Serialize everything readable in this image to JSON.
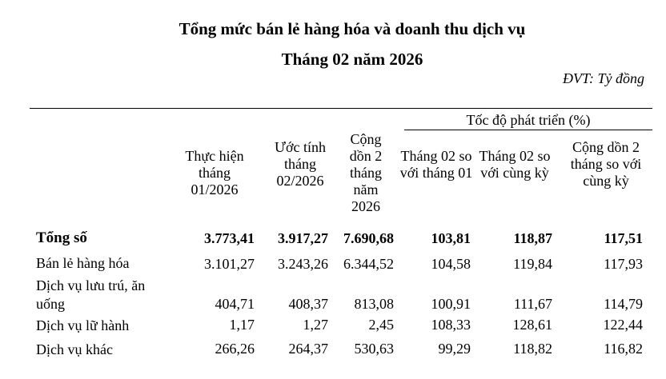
{
  "title": "Tổng mức bán lẻ hàng hóa và doanh thu dịch vụ",
  "subtitle": "Tháng 02 năm 2026",
  "unit": "ĐVT: Tỷ đồng",
  "group_header": "Tốc độ phát triển (%)",
  "columns": [
    "Thực hiện tháng 01/2026",
    "Ước tính tháng 02/2026",
    "Cộng dồn 2 tháng năm 2026",
    "Tháng 02 so với tháng 01",
    "Tháng 02 so với cùng kỳ",
    "Cộng dồn 2 tháng so với cùng kỳ"
  ],
  "rows": [
    {
      "label": "Tổng số",
      "bold": true,
      "values": [
        "3.773,41",
        "3.917,27",
        "7.690,68",
        "103,81",
        "118,87",
        "117,51"
      ]
    },
    {
      "label": "Bán lẻ hàng hóa",
      "values": [
        "3.101,27",
        "3.243,26",
        "6.344,52",
        "104,58",
        "119,84",
        "117,93"
      ]
    },
    {
      "label": "Dịch vụ lưu trú, ăn uống",
      "values": [
        "404,71",
        "408,37",
        "813,08",
        "100,91",
        "111,67",
        "114,79"
      ]
    },
    {
      "label": "Dịch vụ lữ hành",
      "values": [
        "1,17",
        "1,27",
        "2,45",
        "108,33",
        "128,61",
        "122,44"
      ]
    },
    {
      "label": "Dịch vụ khác",
      "values": [
        "266,26",
        "264,37",
        "530,63",
        "99,29",
        "118,82",
        "116,82"
      ]
    }
  ]
}
